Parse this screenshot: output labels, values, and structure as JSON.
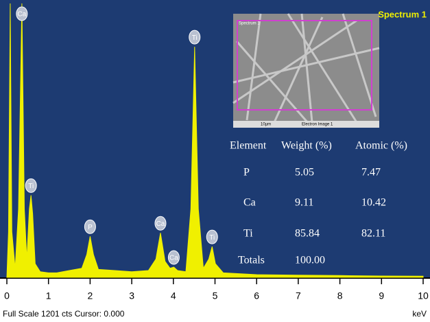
{
  "chart_data": {
    "type": "area",
    "title": "Spectrum 1",
    "x_label": "keV",
    "footer": "Full Scale 1201 cts Cursor: 0.000",
    "color": "#f0f000",
    "background": "#1d3b72",
    "xlim": [
      0,
      10
    ],
    "ylim": [
      0,
      1201
    ],
    "xticks": [
      0,
      1,
      2,
      3,
      4,
      5,
      6,
      7,
      8,
      9,
      10
    ],
    "x": [
      0,
      0.04,
      0.08,
      0.12,
      0.2,
      0.28,
      0.36,
      0.42,
      0.48,
      0.54,
      0.58,
      0.62,
      0.68,
      0.8,
      1.0,
      1.2,
      1.5,
      1.8,
      1.92,
      2.0,
      2.08,
      2.2,
      2.6,
      3.0,
      3.4,
      3.58,
      3.69,
      3.8,
      3.92,
      4.01,
      4.1,
      4.3,
      4.42,
      4.51,
      4.6,
      4.72,
      4.85,
      4.93,
      5.01,
      5.2,
      6.0,
      7.0,
      8.0,
      9.0,
      10.0
    ],
    "values": [
      0,
      200,
      1201,
      200,
      40,
      300,
      1201,
      300,
      80,
      300,
      360,
      280,
      60,
      25,
      20,
      20,
      30,
      40,
      100,
      180,
      100,
      35,
      30,
      25,
      30,
      80,
      195,
      70,
      40,
      45,
      30,
      25,
      300,
      1011,
      300,
      40,
      80,
      135,
      60,
      20,
      12,
      10,
      8,
      6,
      5
    ],
    "peaks": [
      {
        "label": "Ca",
        "x": 0.36
      },
      {
        "label": "Ti",
        "x": 0.58
      },
      {
        "label": "P",
        "x": 2.0
      },
      {
        "label": "Ca",
        "x": 3.69
      },
      {
        "label": "Ca",
        "x": 4.01
      },
      {
        "label": "Ti",
        "x": 4.51
      },
      {
        "label": "Ti",
        "x": 4.93
      }
    ],
    "inset": {
      "title": "Spectrum 1",
      "caption": "Electron Image 1",
      "scale": "10µm"
    },
    "table": {
      "header": [
        "Element",
        "Weight (%)",
        "Atomic (%)"
      ],
      "rows": [
        [
          "P",
          "5.05",
          "7.47"
        ],
        [
          "Ca",
          "9.11",
          "10.42"
        ],
        [
          "Ti",
          "85.84",
          "82.11"
        ],
        [
          "Totals",
          "100.00"
        ]
      ]
    }
  }
}
